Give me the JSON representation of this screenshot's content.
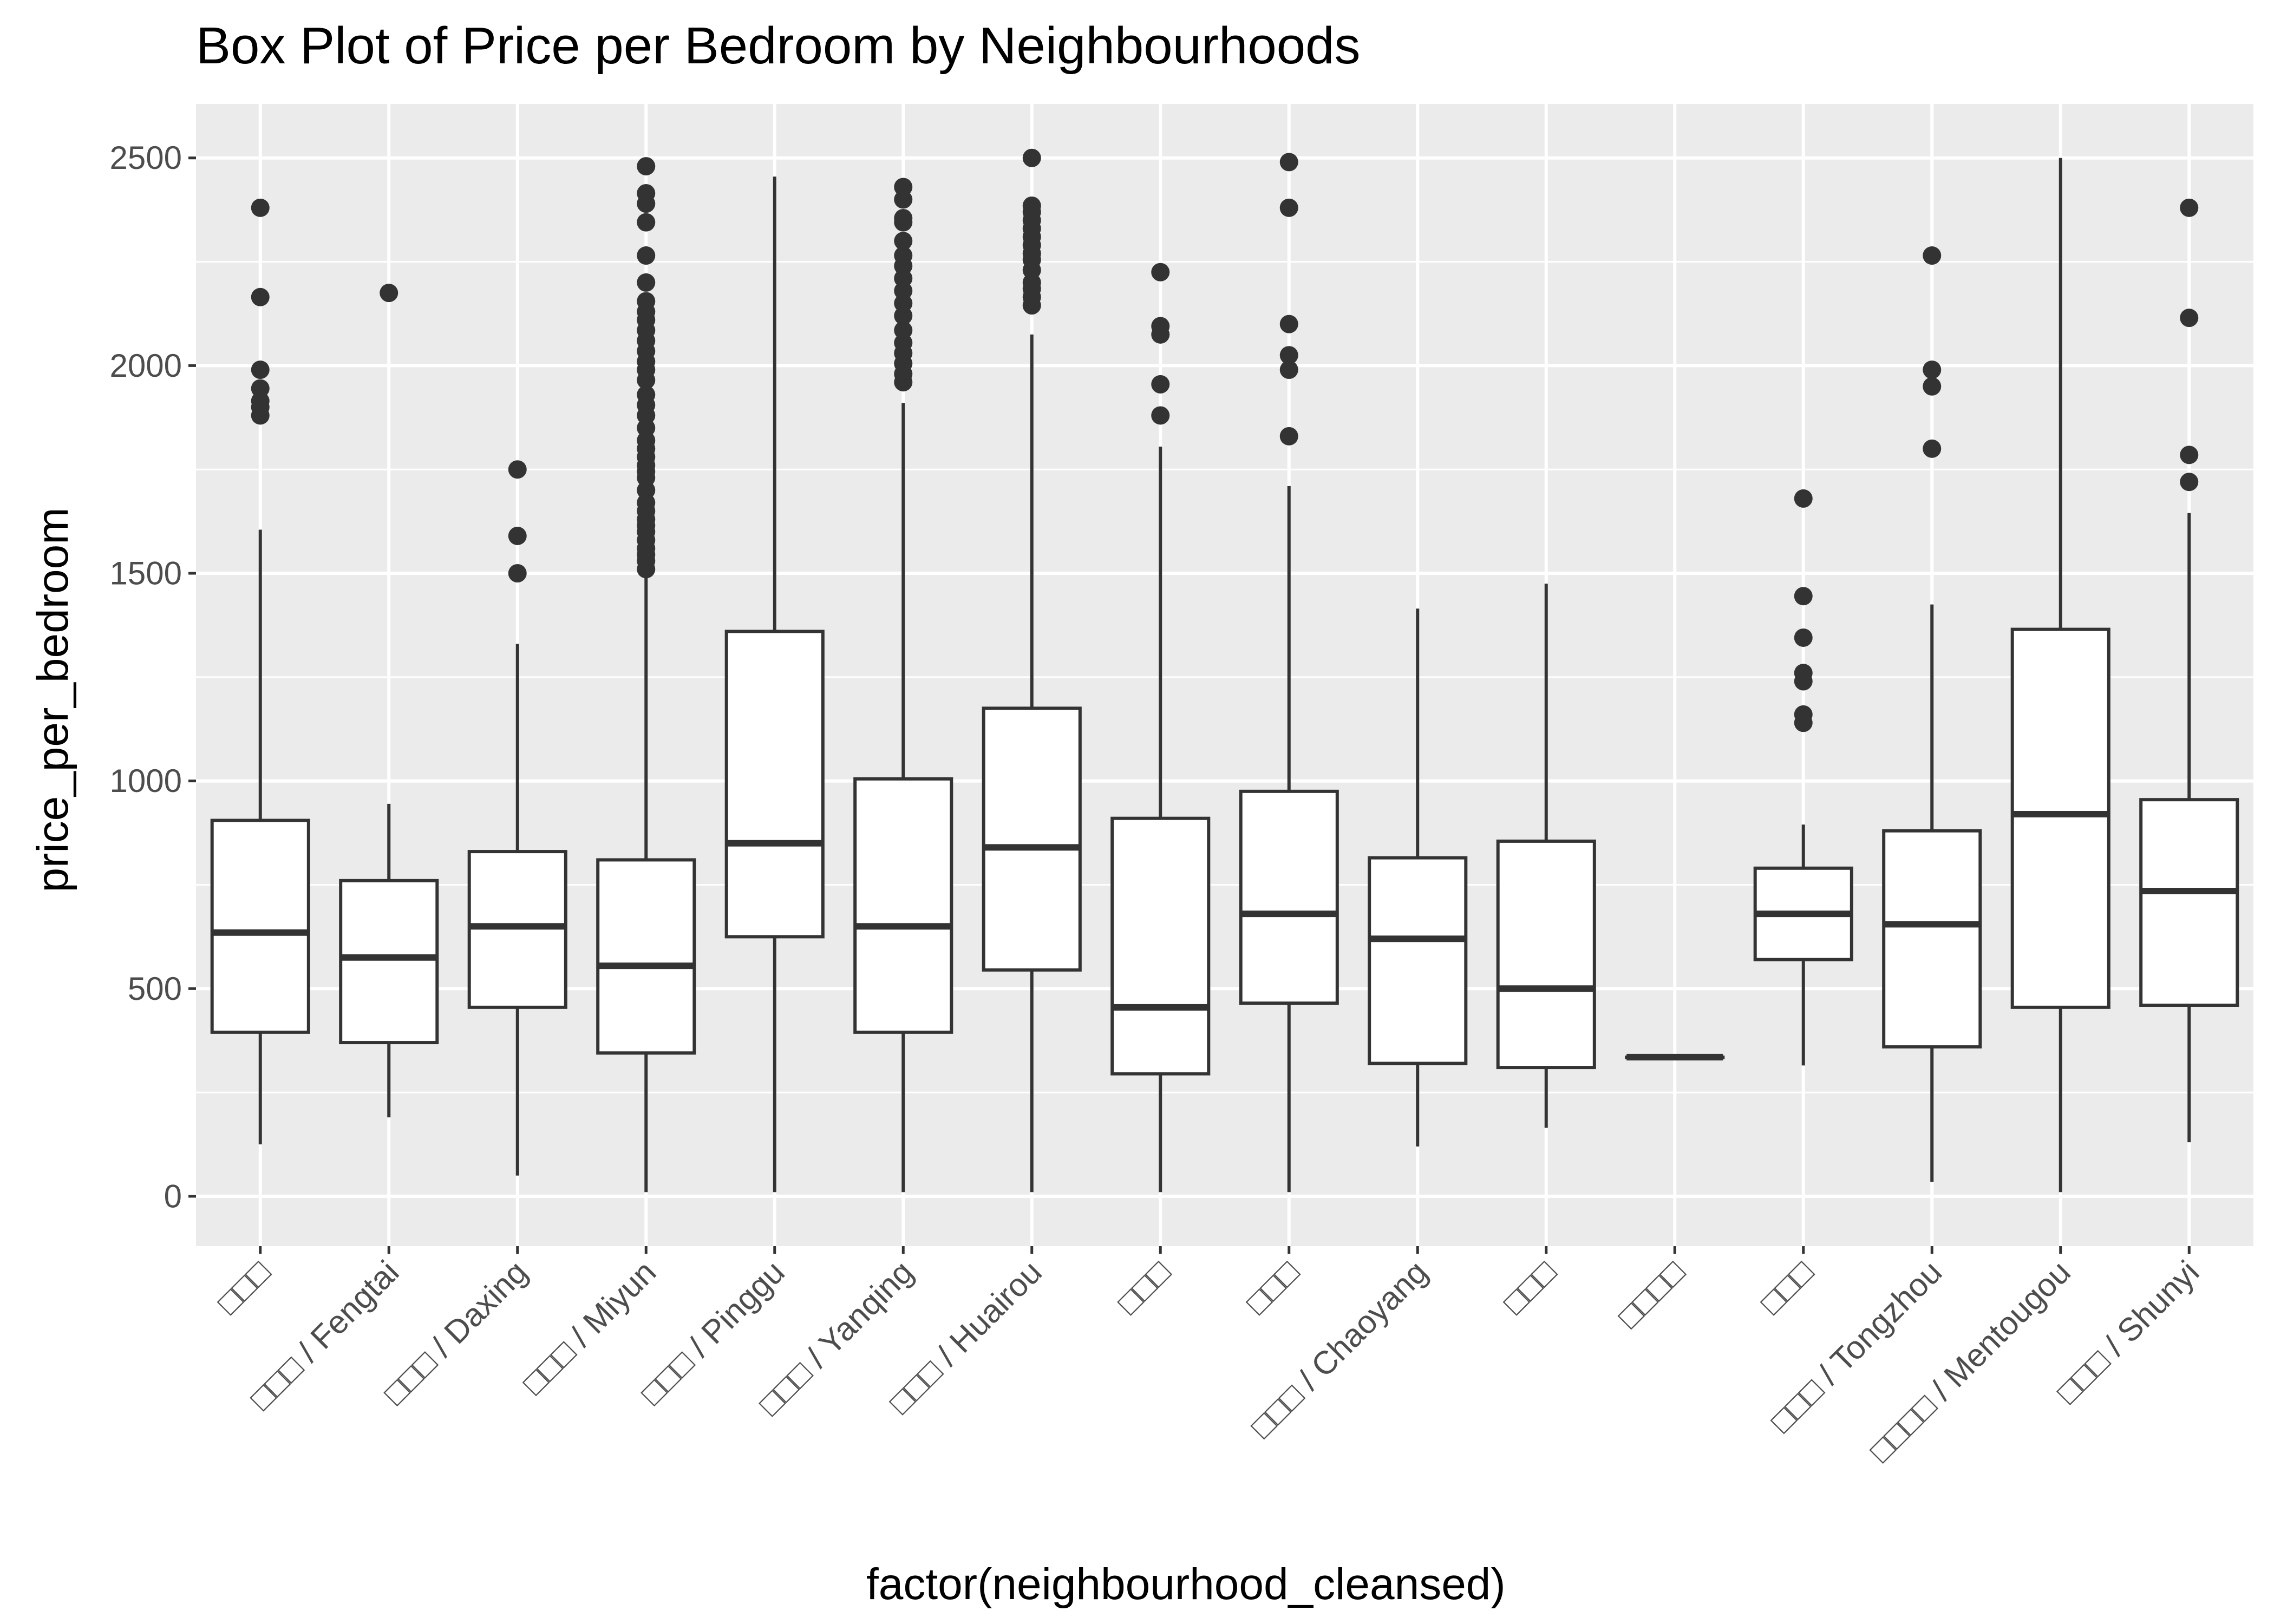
{
  "chart_data": {
    "type": "box",
    "title": "Box Plot of Price per Bedroom by Neighbourhoods",
    "xlabel": "factor(neighbourhood_cleansed)",
    "ylabel": "price_per_bedroom",
    "ylim": [
      -120,
      2630
    ],
    "y_ticks": [
      0,
      500,
      1000,
      1500,
      2000,
      2500
    ],
    "grid": true,
    "legend": "none",
    "colors": {
      "panel": "#ebebeb",
      "grid": "#ffffff",
      "box_fill": "#ffffff",
      "box_line": "#333333",
      "outlier": "#333333"
    },
    "categories": [
      "□□□",
      "□□□ / Fengtai",
      "□□□ / Daxing",
      "□□□ / Miyun",
      "□□□ / Pinggu",
      "□□□ / Yanqing",
      "□□□ / Huairou",
      "□□□",
      "□□□",
      "□□□ / Chaoyang",
      "□□□",
      "□□□□",
      "□□□",
      "□□□ / Tongzhou",
      "□□□□ / Mentougou",
      "□□□ / Shunyi"
    ],
    "boxes": [
      {
        "min": 125,
        "q1": 395,
        "median": 635,
        "q3": 905,
        "max": 1605,
        "outliers": [
          1880,
          1900,
          1915,
          1945,
          1990,
          2165,
          2380
        ]
      },
      {
        "min": 190,
        "q1": 370,
        "median": 575,
        "q3": 760,
        "max": 945,
        "outliers": [
          2175
        ]
      },
      {
        "min": 50,
        "q1": 455,
        "median": 650,
        "q3": 830,
        "max": 1330,
        "outliers": [
          1500,
          1590,
          1750
        ]
      },
      {
        "min": 10,
        "q1": 345,
        "median": 555,
        "q3": 810,
        "max": 1505,
        "outliers": [
          1510,
          1530,
          1545,
          1560,
          1580,
          1600,
          1615,
          1630,
          1650,
          1670,
          1700,
          1730,
          1745,
          1760,
          1780,
          1800,
          1820,
          1850,
          1880,
          1905,
          1930,
          1965,
          1990,
          2010,
          2035,
          2060,
          2085,
          2110,
          2130,
          2155,
          2200,
          2265,
          2345,
          2390,
          2415,
          2480
        ]
      },
      {
        "min": 10,
        "q1": 625,
        "median": 850,
        "q3": 1360,
        "max": 2455,
        "outliers": []
      },
      {
        "min": 10,
        "q1": 395,
        "median": 650,
        "q3": 1005,
        "max": 1910,
        "outliers": [
          1960,
          1980,
          2005,
          2030,
          2055,
          2085,
          2120,
          2150,
          2180,
          2210,
          2240,
          2265,
          2300,
          2345,
          2355,
          2400,
          2430
        ]
      },
      {
        "min": 10,
        "q1": 545,
        "median": 840,
        "q3": 1175,
        "max": 2075,
        "outliers": [
          2145,
          2165,
          2185,
          2200,
          2230,
          2255,
          2270,
          2290,
          2310,
          2330,
          2350,
          2370,
          2385,
          2500
        ]
      },
      {
        "min": 10,
        "q1": 295,
        "median": 455,
        "q3": 910,
        "max": 1805,
        "outliers": [
          1880,
          1955,
          2075,
          2095,
          2225
        ]
      },
      {
        "min": 10,
        "q1": 465,
        "median": 680,
        "q3": 975,
        "max": 1710,
        "outliers": [
          1830,
          1990,
          2025,
          2100,
          2380,
          2490
        ]
      },
      {
        "min": 120,
        "q1": 320,
        "median": 620,
        "q3": 815,
        "max": 1415,
        "outliers": []
      },
      {
        "min": 165,
        "q1": 310,
        "median": 500,
        "q3": 855,
        "max": 1475,
        "outliers": []
      },
      {
        "min": 335,
        "q1": 335,
        "median": 335,
        "q3": 335,
        "max": 335,
        "outliers": []
      },
      {
        "min": 315,
        "q1": 570,
        "median": 680,
        "q3": 790,
        "max": 895,
        "outliers": [
          1140,
          1160,
          1240,
          1260,
          1345,
          1445,
          1680
        ]
      },
      {
        "min": 35,
        "q1": 360,
        "median": 655,
        "q3": 880,
        "max": 1425,
        "outliers": [
          1800,
          1950,
          1990,
          2265
        ]
      },
      {
        "min": 10,
        "q1": 455,
        "median": 920,
        "q3": 1365,
        "max": 2500,
        "outliers": []
      },
      {
        "min": 130,
        "q1": 460,
        "median": 735,
        "q3": 955,
        "max": 1645,
        "outliers": [
          1720,
          1785,
          2115,
          2380
        ]
      }
    ]
  }
}
